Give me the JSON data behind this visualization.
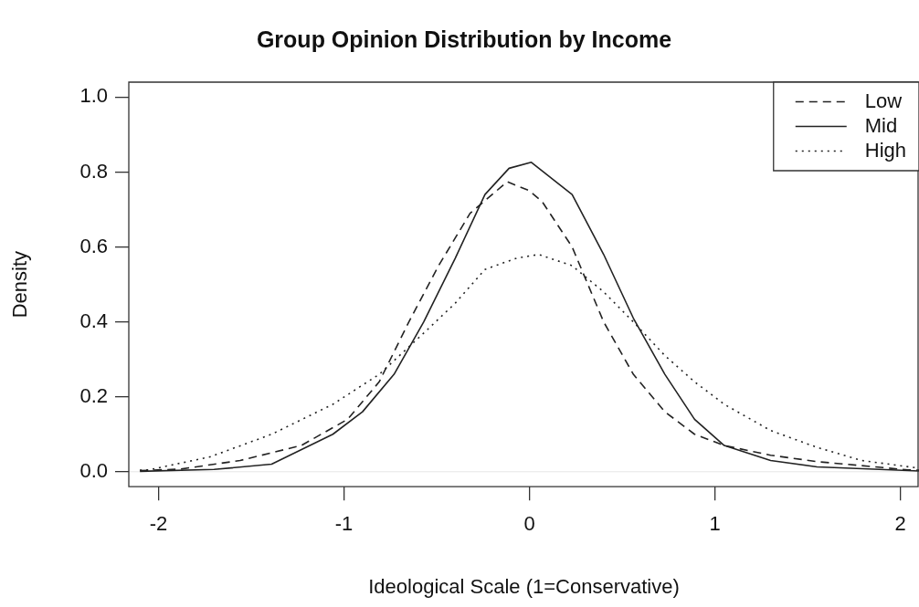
{
  "chart_data": {
    "type": "line",
    "title": "Group Opinion Distribution by Income",
    "xlabel": "Ideological Scale (1=Conservative)",
    "ylabel": "Density",
    "xlim": [
      -2.16,
      2.1
    ],
    "xticks": [
      -2,
      -1,
      0,
      1,
      2
    ],
    "ylim": [
      -0.04,
      1.04
    ],
    "yticks": [
      {
        "value": 0,
        "label": "0.0"
      },
      {
        "value": 0.2,
        "label": "0.2"
      },
      {
        "value": 0.4,
        "label": "0.4"
      },
      {
        "value": 0.6,
        "label": "0.6"
      },
      {
        "value": 0.8,
        "label": "0.8"
      },
      {
        "value": 1,
        "label": "1.0"
      }
    ],
    "grid": false,
    "legend": "top right",
    "marker": "none",
    "ref_lines": [
      {
        "axis": "y",
        "value": 0,
        "color": "#e6e6e6"
      }
    ],
    "series": [
      {
        "name": "Low",
        "color": "#222222",
        "line_style": "dashed",
        "x": [
          -2.1,
          -1.88,
          -1.56,
          -1.23,
          -0.98,
          -0.81,
          -0.65,
          -0.49,
          -0.32,
          -0.12,
          0,
          0.07,
          0.23,
          0.4,
          0.56,
          0.73,
          0.89,
          1.05,
          1.3,
          1.55,
          2.04,
          2.1
        ],
        "values": [
          0.003,
          0.007,
          0.03,
          0.07,
          0.14,
          0.24,
          0.4,
          0.55,
          0.69,
          0.774,
          0.75,
          0.72,
          0.6,
          0.4,
          0.26,
          0.16,
          0.1,
          0.07,
          0.044,
          0.027,
          0.005,
          0.004
        ]
      },
      {
        "name": "Mid",
        "color": "#222222",
        "line_style": "solid",
        "x": [
          -2.1,
          -1.7,
          -1.39,
          -1.06,
          -0.9,
          -0.73,
          -0.57,
          -0.4,
          -0.24,
          -0.11,
          0.01,
          0.23,
          0.4,
          0.56,
          0.73,
          0.89,
          1.05,
          1.3,
          1.55,
          2.04,
          2.1
        ],
        "values": [
          0.001,
          0.006,
          0.02,
          0.1,
          0.16,
          0.26,
          0.4,
          0.57,
          0.74,
          0.81,
          0.826,
          0.74,
          0.58,
          0.41,
          0.26,
          0.14,
          0.07,
          0.03,
          0.013,
          0.003,
          0.002
        ]
      },
      {
        "name": "High",
        "color": "#222222",
        "line_style": "dotted",
        "x": [
          -2.1,
          -2.05,
          -1.72,
          -1.39,
          -1.06,
          -0.81,
          -0.57,
          -0.4,
          -0.24,
          -0.07,
          0.05,
          0.23,
          0.4,
          0.56,
          0.73,
          0.89,
          1.05,
          1.3,
          1.55,
          1.79,
          2.09
        ],
        "values": [
          0.004,
          0.005,
          0.04,
          0.1,
          0.18,
          0.26,
          0.37,
          0.45,
          0.54,
          0.57,
          0.58,
          0.55,
          0.48,
          0.4,
          0.31,
          0.24,
          0.18,
          0.11,
          0.065,
          0.03,
          0.01
        ]
      }
    ]
  }
}
